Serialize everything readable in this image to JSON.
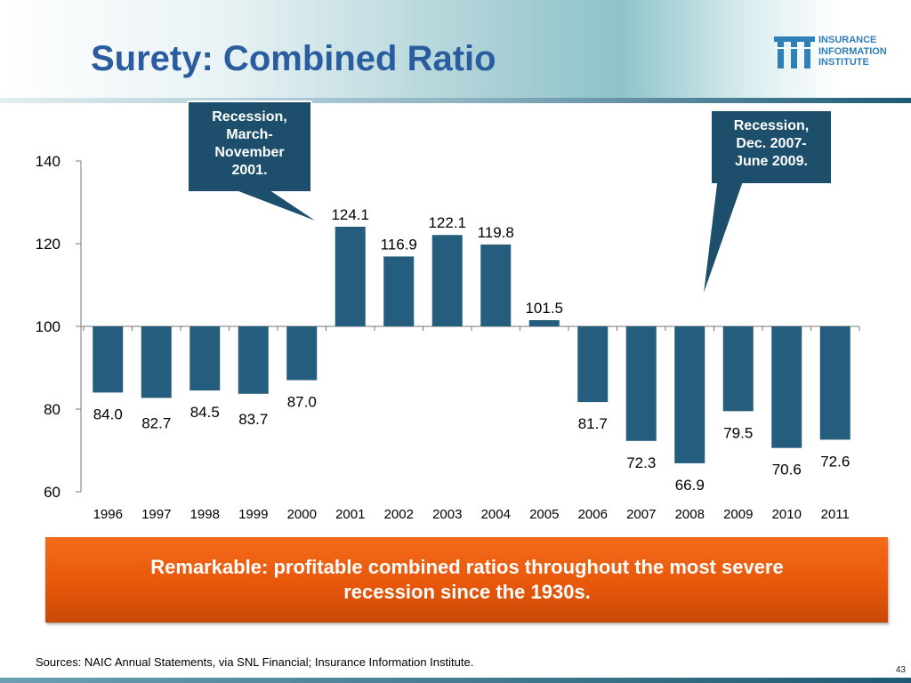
{
  "title": "Surety:  Combined Ratio",
  "logo": {
    "lines": [
      "INSURANCE",
      "INFORMATION",
      "INSTITUTE"
    ]
  },
  "callouts": {
    "left": {
      "lines": [
        "Recession,",
        "March-",
        "November",
        "2001."
      ]
    },
    "right": {
      "lines": [
        "Recession,",
        "Dec. 2007-",
        "June 2009."
      ]
    }
  },
  "banner": {
    "lines": [
      "Remarkable: profitable combined ratios throughout the most severe",
      "recession since the 1930s."
    ]
  },
  "source": "Sources: NAIC Annual Statements, via SNL Financial; Insurance Information Institute.",
  "page_number": "43",
  "colors": {
    "title": "#2a5d9f",
    "bar": "#245d7e",
    "banner": "#e8570a",
    "callout": "#1d4f6c"
  },
  "chart_data": {
    "type": "bar",
    "categories": [
      "1996",
      "1997",
      "1998",
      "1999",
      "2000",
      "2001",
      "2002",
      "2003",
      "2004",
      "2005",
      "2006",
      "2007",
      "2008",
      "2009",
      "2010",
      "2011"
    ],
    "values": [
      84.0,
      82.7,
      84.5,
      83.7,
      87.0,
      124.1,
      116.9,
      122.1,
      119.8,
      101.5,
      81.7,
      72.3,
      66.9,
      79.5,
      70.6,
      72.6
    ],
    "value_labels": [
      "84.0",
      "82.7",
      "84.5",
      "83.7",
      "87.0",
      "124.1",
      "116.9",
      "122.1",
      "119.8",
      "101.5",
      "81.7",
      "72.3",
      "66.9",
      "79.5",
      "70.6",
      "72.6"
    ],
    "baseline": 100,
    "ylim": [
      60,
      140
    ],
    "yticks": [
      60,
      80,
      100,
      120,
      140
    ],
    "ytick_labels": [
      "60",
      "80",
      "100",
      "120",
      "140"
    ],
    "xlabel": "",
    "ylabel": "",
    "grid": false,
    "legend": "none"
  }
}
